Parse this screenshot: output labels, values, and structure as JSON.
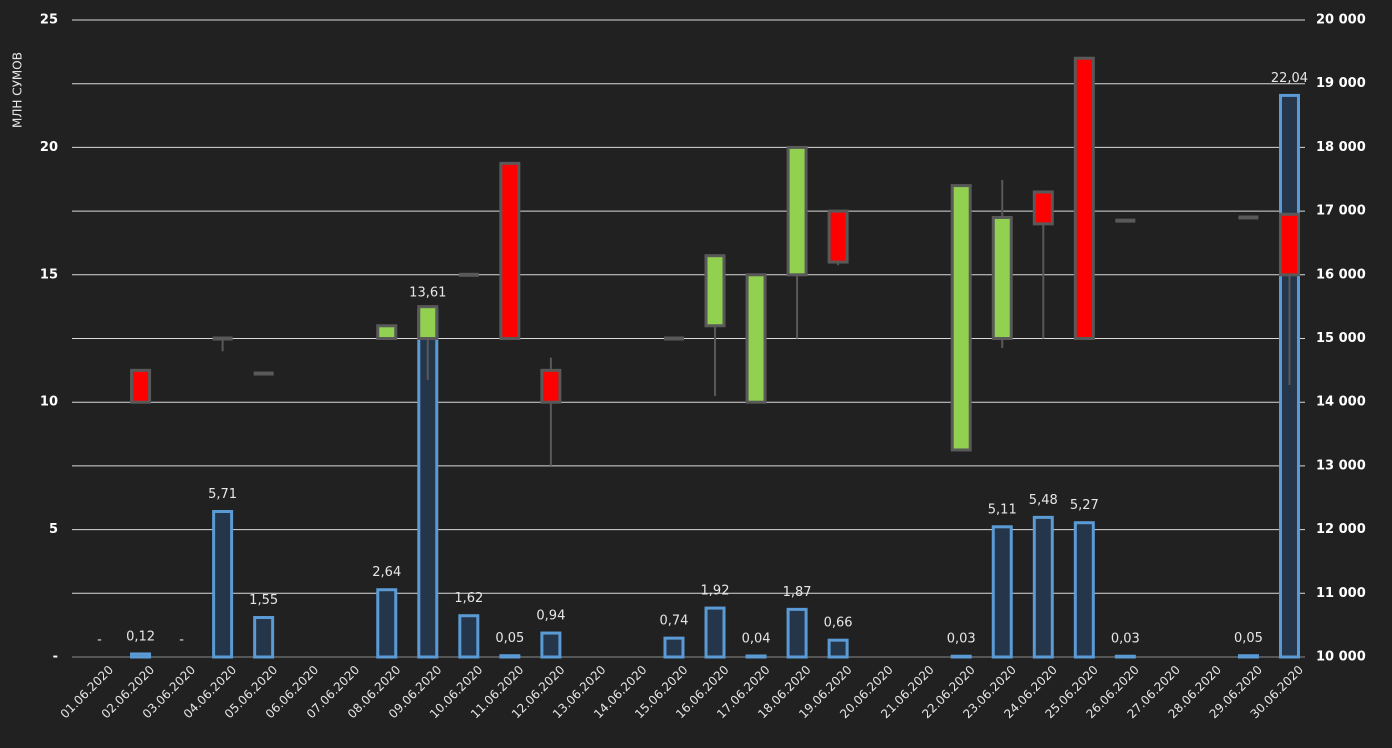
{
  "chart_data": {
    "type": "bar",
    "y_label": "МЛН СУМОВ",
    "categories": [
      "01.06.2020",
      "02.06.2020",
      "03.06.2020",
      "04.06.2020",
      "05.06.2020",
      "06.06.2020",
      "07.06.2020",
      "08.06.2020",
      "09.06.2020",
      "10.06.2020",
      "11.06.2020",
      "12.06.2020",
      "13.06.2020",
      "14.06.2020",
      "15.06.2020",
      "16.06.2020",
      "17.06.2020",
      "18.06.2020",
      "19.06.2020",
      "20.06.2020",
      "21.06.2020",
      "22.06.2020",
      "23.06.2020",
      "24.06.2020",
      "25.06.2020",
      "26.06.2020",
      "27.06.2020",
      "28.06.2020",
      "29.06.2020",
      "30.06.2020"
    ],
    "values": [
      0,
      0.12,
      0,
      5.71,
      1.55,
      null,
      null,
      2.64,
      13.61,
      1.62,
      0.05,
      0.94,
      null,
      null,
      0.74,
      1.92,
      0.04,
      1.87,
      0.66,
      null,
      null,
      0.03,
      5.11,
      5.48,
      5.27,
      0.03,
      null,
      null,
      0.05,
      22.04
    ],
    "value_labels": [
      "-",
      "0,12",
      "-",
      "5,71",
      "1,55",
      null,
      null,
      "2,64",
      "13,61",
      "1,62",
      "0,05",
      "0,94",
      null,
      null,
      "0,74",
      "1,92",
      "0,04",
      "1,87",
      "0,66",
      null,
      null,
      "0,03",
      "5,11",
      "5,48",
      "5,27",
      "0,03",
      null,
      null,
      "0,05",
      "22,04"
    ],
    "color": "#5b9bd5",
    "ylim": [
      0,
      25
    ],
    "yticks": [
      {
        "value": 0,
        "label": "-"
      },
      5,
      10,
      15,
      20,
      25
    ],
    "y2lim": [
      10000,
      20000
    ],
    "y2ticks": [
      {
        "value": 10000,
        "label": "10 000"
      },
      {
        "value": 11000,
        "label": "11 000"
      },
      {
        "value": 12000,
        "label": "12 000"
      },
      {
        "value": 13000,
        "label": "13 000"
      },
      {
        "value": 14000,
        "label": "14 000"
      },
      {
        "value": 15000,
        "label": "15 000"
      },
      {
        "value": 16000,
        "label": "16 000"
      },
      {
        "value": 17000,
        "label": "17 000"
      },
      {
        "value": 18000,
        "label": "18 000"
      },
      {
        "value": 19000,
        "label": "19 000"
      },
      {
        "value": 20000,
        "label": "20 000"
      }
    ],
    "grid": true,
    "overlay": {
      "type": "candlestick",
      "axis": "y2",
      "up_color": "#92d050",
      "down_color": "#ff0000",
      "wick_color": "#595959",
      "open": [
        null,
        14500,
        null,
        15000,
        14450,
        null,
        null,
        15000,
        15000,
        16000,
        17750,
        14500,
        null,
        null,
        15000,
        15200,
        14000,
        16000,
        17000,
        null,
        null,
        13250,
        15000,
        17300,
        19400,
        16850,
        null,
        null,
        16900,
        16950
      ],
      "close": [
        null,
        14000,
        null,
        15000,
        14450,
        null,
        null,
        15200,
        15500,
        16000,
        15000,
        14000,
        null,
        null,
        15000,
        16300,
        16000,
        18000,
        16200,
        null,
        null,
        17400,
        16900,
        16800,
        15000,
        16850,
        null,
        null,
        16900,
        16000
      ],
      "high": [
        null,
        14500,
        null,
        15000,
        14450,
        null,
        null,
        15200,
        15500,
        16000,
        17750,
        14700,
        null,
        null,
        15000,
        16300,
        16000,
        18000,
        17000,
        null,
        null,
        17400,
        17490,
        17300,
        19400,
        16850,
        null,
        null,
        16900,
        16950
      ],
      "low": [
        null,
        14000,
        null,
        14800,
        14450,
        null,
        null,
        15000,
        14350,
        16000,
        15000,
        13000,
        null,
        null,
        15000,
        14100,
        14000,
        15000,
        16150,
        null,
        null,
        13250,
        14850,
        15000,
        15000,
        16850,
        null,
        null,
        16900,
        14270
      ]
    }
  }
}
